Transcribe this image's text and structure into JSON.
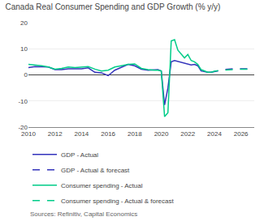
{
  "chart_data": {
    "type": "line",
    "title": "Canada Real Consumer Spending and GDP Growth (% y/y)",
    "annotations": [
      "Sources: Refinitiv, Capital Economics"
    ],
    "xlim": [
      2010,
      2027
    ],
    "ylim": [
      -20,
      20
    ],
    "xticks": [
      2010,
      2012,
      2014,
      2016,
      2018,
      2020,
      2022,
      2024,
      2026
    ],
    "yticks": [
      -20,
      -10,
      0,
      10,
      20
    ],
    "grid": true,
    "legend": "bottom",
    "series": [
      {
        "name": "GDP - Actual",
        "color": "#3333bb",
        "line_style": "solid",
        "x": [
          2010,
          2010.5,
          2011,
          2011.5,
          2012,
          2012.5,
          2013,
          2013.5,
          2014,
          2014.5,
          2015,
          2015.5,
          2016,
          2016.5,
          2017,
          2017.5,
          2018,
          2018.5,
          2019,
          2019.25,
          2019.5,
          2019.75,
          2020.0,
          2020.25,
          2020.5,
          2020.75,
          2021.0,
          2021.25,
          2021.5,
          2021.75,
          2022.0,
          2022.25,
          2022.5,
          2022.75,
          2023.0,
          2023.25,
          2023.5,
          2023.75
        ],
        "values": [
          2.8,
          3.2,
          3.1,
          3.0,
          2.0,
          2.0,
          2.3,
          2.2,
          2.3,
          2.7,
          1.0,
          0.8,
          -0.3,
          1.8,
          3.0,
          4.0,
          3.5,
          2.2,
          1.8,
          1.8,
          2.0,
          2.0,
          1.5,
          -11.5,
          -5.0,
          5.0,
          5.5,
          5.2,
          4.8,
          4.5,
          4.2,
          3.8,
          4.0,
          3.5,
          1.5,
          1.2,
          1.0,
          1.0
        ]
      },
      {
        "name": "GDP - Actual & forecast",
        "color": "#3333bb",
        "line_style": "dashed",
        "x": [
          2023.75,
          2024.0,
          2024.5,
          2025.0,
          2025.5,
          2026.0,
          2026.5
        ],
        "values": [
          1.0,
          1.3,
          1.8,
          2.2,
          2.4,
          2.3,
          2.3
        ]
      },
      {
        "name": "Consumer spending - Actual",
        "color": "#00cc88",
        "line_style": "solid",
        "x": [
          2010,
          2010.5,
          2011,
          2011.5,
          2012,
          2012.5,
          2013,
          2013.5,
          2014,
          2014.5,
          2015,
          2015.5,
          2016,
          2016.5,
          2017,
          2017.5,
          2018,
          2018.5,
          2019,
          2019.25,
          2019.5,
          2019.75,
          2020.0,
          2020.25,
          2020.5,
          2020.75,
          2021.0,
          2021.25,
          2021.5,
          2021.75,
          2022.0,
          2022.25,
          2022.5,
          2022.75,
          2023.0,
          2023.25,
          2023.5,
          2023.75
        ],
        "values": [
          4.0,
          3.8,
          3.5,
          3.0,
          2.2,
          2.5,
          3.0,
          2.8,
          3.0,
          3.2,
          2.2,
          1.5,
          1.8,
          3.0,
          3.5,
          4.0,
          4.2,
          2.5,
          2.0,
          1.8,
          1.8,
          1.8,
          1.5,
          -16.0,
          -14.5,
          13.0,
          13.5,
          9.5,
          8.0,
          6.5,
          7.8,
          5.5,
          5.0,
          4.0,
          2.0,
          1.5,
          1.0,
          1.0
        ]
      },
      {
        "name": "Consumer spending - Actual & forecast",
        "color": "#00cc88",
        "line_style": "dashed",
        "x": [
          2023.75,
          2024.0,
          2024.5,
          2025.0,
          2025.5,
          2026.0,
          2026.5
        ],
        "values": [
          1.0,
          1.4,
          1.8,
          2.0,
          2.2,
          2.2,
          2.2
        ]
      }
    ]
  }
}
